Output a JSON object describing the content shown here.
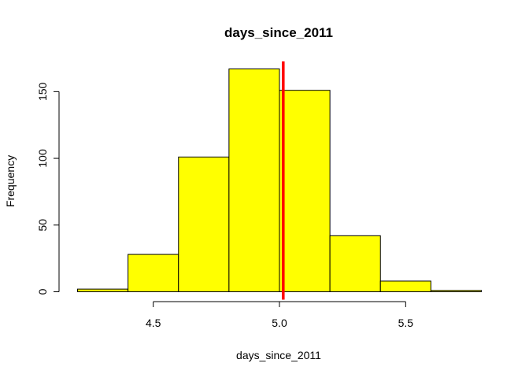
{
  "chart_data": {
    "type": "bar",
    "title": "days_since_2011",
    "xlabel": "days_since_2011",
    "ylabel": "Frequency",
    "bins": [
      {
        "start": 4.2,
        "end": 4.4,
        "count": 2
      },
      {
        "start": 4.4,
        "end": 4.6,
        "count": 28
      },
      {
        "start": 4.6,
        "end": 4.8,
        "count": 101
      },
      {
        "start": 4.8,
        "end": 5.0,
        "count": 167
      },
      {
        "start": 5.0,
        "end": 5.2,
        "count": 151
      },
      {
        "start": 5.2,
        "end": 5.4,
        "count": 42
      },
      {
        "start": 5.4,
        "end": 5.6,
        "count": 8
      },
      {
        "start": 5.6,
        "end": 5.8,
        "count": 1
      }
    ],
    "vline": {
      "x": 5.015,
      "color": "#ff0000"
    },
    "bar_color": "#ffff00",
    "xlim": [
      4.2,
      5.8
    ],
    "ylim": [
      0,
      175
    ],
    "xticks": [
      4.5,
      5.0,
      5.5
    ],
    "xtick_labels": [
      "4.5",
      "5.0",
      "5.5"
    ],
    "yticks": [
      0,
      50,
      100,
      150
    ],
    "ytick_labels": [
      "0",
      "50",
      "100",
      "150"
    ],
    "grid": false,
    "legend": "none"
  }
}
